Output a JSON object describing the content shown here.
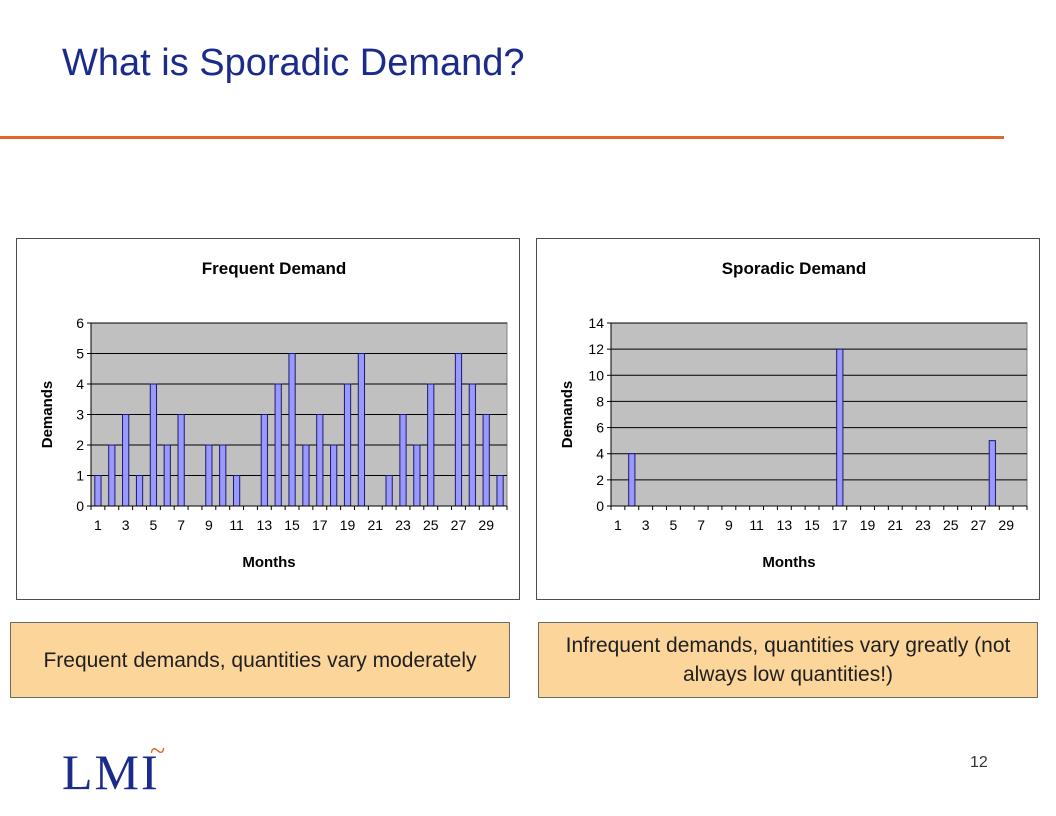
{
  "slide": {
    "title": "What is Sporadic Demand?",
    "page_number": "12",
    "logo_text": "LMI",
    "logo_mark": "~"
  },
  "captions": {
    "frequent": "Frequent demands, quantities vary moderately",
    "sporadic": "Infrequent demands, quantities vary greatly (not always low quantities!)"
  },
  "colors": {
    "title": "#1a2b8c",
    "rule": "#e0672a",
    "bar_fill": "#9999ff",
    "bar_stroke": "#1a1a6e",
    "plot_bg": "#c0c0c0",
    "caption_bg": "#fcd59a"
  },
  "chart_data": [
    {
      "type": "bar",
      "title": "Frequent Demand",
      "xlabel": "Months",
      "ylabel": "Demands",
      "ylim": [
        0,
        6
      ],
      "yticks": [
        0,
        1,
        2,
        3,
        4,
        5,
        6
      ],
      "xtick_labels": [
        "1",
        "3",
        "5",
        "7",
        "9",
        "11",
        "13",
        "15",
        "17",
        "19",
        "21",
        "23",
        "25",
        "27",
        "29"
      ],
      "categories": [
        1,
        2,
        3,
        4,
        5,
        6,
        7,
        8,
        9,
        10,
        11,
        12,
        13,
        14,
        15,
        16,
        17,
        18,
        19,
        20,
        21,
        22,
        23,
        24,
        25,
        26,
        27,
        28,
        29,
        30
      ],
      "values": [
        1,
        2,
        3,
        1,
        4,
        2,
        3,
        0,
        2,
        2,
        1,
        0,
        3,
        4,
        5,
        2,
        3,
        2,
        4,
        5,
        0,
        1,
        3,
        2,
        4,
        0,
        5,
        4,
        3,
        1
      ],
      "grid": true,
      "legend": "none"
    },
    {
      "type": "bar",
      "title": "Sporadic Demand",
      "xlabel": "Months",
      "ylabel": "Demands",
      "ylim": [
        0,
        14
      ],
      "yticks": [
        0,
        2,
        4,
        6,
        8,
        10,
        12,
        14
      ],
      "xtick_labels": [
        "1",
        "3",
        "5",
        "7",
        "9",
        "11",
        "13",
        "15",
        "17",
        "19",
        "21",
        "23",
        "25",
        "27",
        "29"
      ],
      "categories": [
        1,
        2,
        3,
        4,
        5,
        6,
        7,
        8,
        9,
        10,
        11,
        12,
        13,
        14,
        15,
        16,
        17,
        18,
        19,
        20,
        21,
        22,
        23,
        24,
        25,
        26,
        27,
        28,
        29,
        30
      ],
      "values": [
        0,
        4,
        0,
        0,
        0,
        0,
        0,
        0,
        0,
        0,
        0,
        0,
        0,
        0,
        0,
        0,
        12,
        0,
        0,
        0,
        0,
        0,
        0,
        0,
        0,
        0,
        0,
        5,
        0,
        0
      ],
      "grid": true,
      "legend": "none"
    }
  ]
}
